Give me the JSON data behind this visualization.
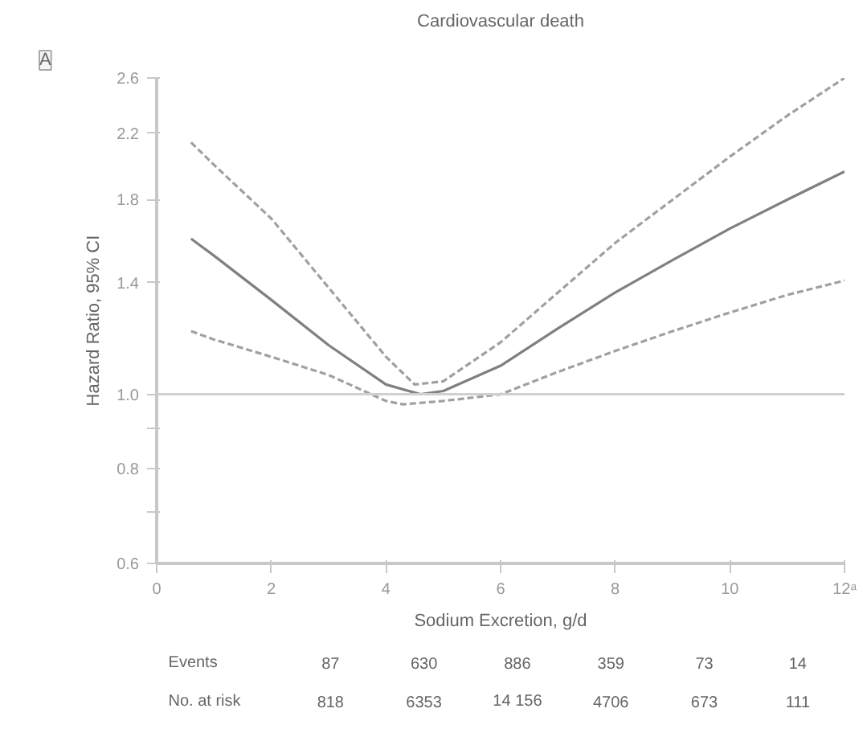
{
  "chart_data": {
    "type": "line",
    "title": "Cardiovascular death",
    "xlabel": "Sodium Excretion, g/d",
    "ylabel": "Hazard Ratio, 95% CI",
    "log": "y",
    "grid": false,
    "marker": "none",
    "xlim": [
      0,
      12
    ],
    "xticks": [
      0,
      2,
      4,
      6,
      8,
      10,
      {
        "value": 12,
        "label": "12ᵃ"
      }
    ],
    "ylim": [
      0.6,
      2.6
    ],
    "yticks": [
      0.6,
      {
        "value": 0.7,
        "label": null
      },
      0.8,
      {
        "value": 0.9,
        "label": null
      },
      {
        "value": 1.0,
        "label": "1.0"
      },
      1.4,
      1.8,
      2.2,
      2.6
    ],
    "ref_lines": [
      {
        "axis": "y",
        "value": 1.0,
        "label": null,
        "color": "#d0d0d0",
        "line_style": "solid"
      }
    ],
    "series": [
      {
        "color": "#a0a0a0",
        "line_style": "dashed",
        "x": [
          0.6,
          1,
          2,
          3,
          4,
          4.5,
          5,
          6,
          7,
          8,
          9,
          10,
          11,
          12
        ],
        "values": [
          2.14,
          2.0,
          1.7,
          1.38,
          1.12,
          1.03,
          1.04,
          1.17,
          1.36,
          1.58,
          1.8,
          2.05,
          2.32,
          2.6
        ]
      },
      {
        "color": "#808080",
        "line_style": "solid",
        "x": [
          0.6,
          1,
          2,
          3,
          4,
          4.6,
          5,
          6,
          7,
          8,
          9,
          10,
          11,
          12
        ],
        "values": [
          1.6,
          1.52,
          1.33,
          1.16,
          1.03,
          1.0,
          1.01,
          1.09,
          1.22,
          1.36,
          1.5,
          1.65,
          1.8,
          1.96
        ]
      },
      {
        "color": "#a0a0a0",
        "line_style": "dashed",
        "x": [
          0.6,
          1,
          2,
          3,
          4,
          4.3,
          5,
          5.5,
          6,
          7,
          8,
          9,
          10,
          11,
          12
        ],
        "values": [
          1.21,
          1.18,
          1.12,
          1.06,
          0.98,
          0.97,
          0.98,
          0.99,
          1.0,
          1.07,
          1.14,
          1.21,
          1.28,
          1.35,
          1.41
        ]
      }
    ],
    "annotations": [
      "A",
      "Events",
      "87",
      "630",
      "886",
      "359",
      "73",
      "14",
      "No. at risk",
      "818",
      "6353",
      "14 156",
      "4706",
      "673",
      "111"
    ]
  }
}
